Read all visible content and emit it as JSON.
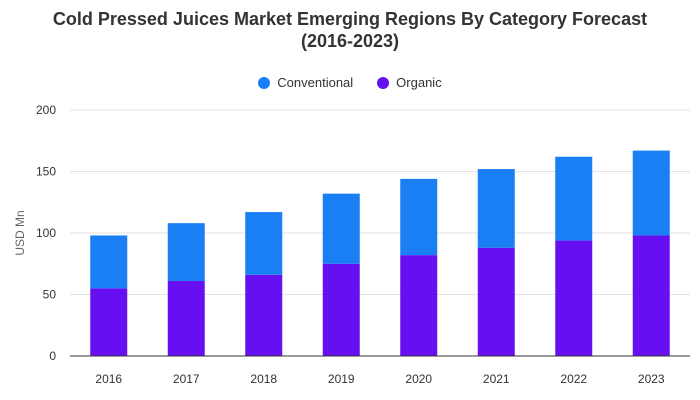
{
  "chart_data": {
    "type": "bar",
    "stacked": true,
    "title_line1": "Cold Pressed Juices Market Emerging Regions By Category Forecast",
    "title_line2": "(2016-2023)",
    "ylabel": "USD Mn",
    "xlabel": "",
    "ylim": [
      0,
      200
    ],
    "yticks": [
      0,
      50,
      100,
      150,
      200
    ],
    "grid": true,
    "legend_position": "top-center",
    "categories": [
      "2016",
      "2017",
      "2018",
      "2019",
      "2020",
      "2021",
      "2022",
      "2023"
    ],
    "series": [
      {
        "name": "Organic",
        "color": "#6610f2",
        "values": [
          55,
          61,
          66,
          75,
          82,
          88,
          94,
          98
        ]
      },
      {
        "name": "Conventional",
        "color": "#1a7ff5",
        "values": [
          43,
          47,
          51,
          57,
          62,
          64,
          68,
          69
        ]
      }
    ]
  }
}
